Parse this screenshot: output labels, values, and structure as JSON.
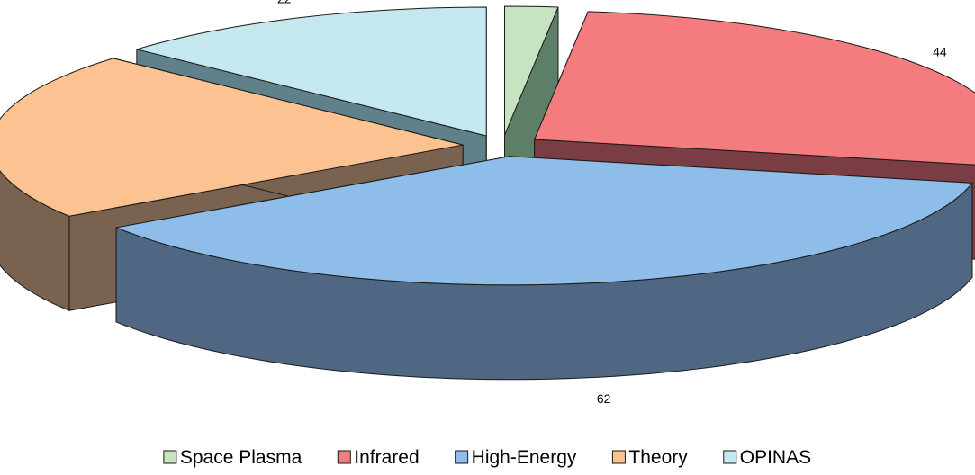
{
  "chart_data": {
    "type": "pie",
    "style": "3d-exploded",
    "title": "",
    "categories": [
      "Space Plasma",
      "Infrared",
      "High-Energy",
      "Theory",
      "OPINAS"
    ],
    "values": [
      3,
      44,
      62,
      35,
      22
    ],
    "colors": [
      "#c6e4c0",
      "#f47c7e",
      "#8dbde8",
      "#fcc291",
      "#c4e8ee"
    ],
    "side_colors": [
      "#5e7f67",
      "#7a3d43",
      "#506784",
      "#7a6250",
      "#60808a"
    ],
    "legend": {
      "position": "bottom"
    }
  }
}
